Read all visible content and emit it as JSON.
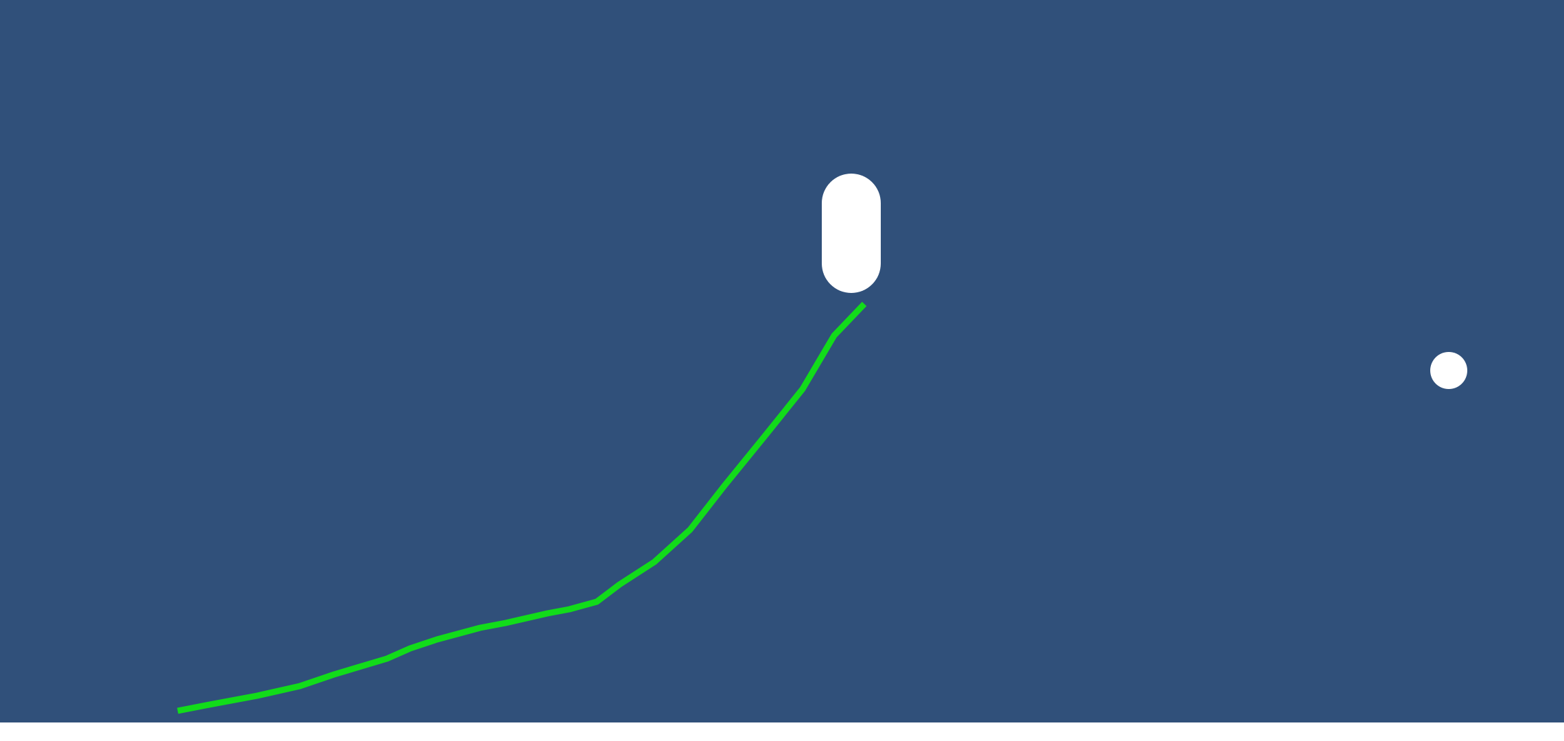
{
  "colors": {
    "background": "#30507a",
    "trail": "#12dc1a",
    "player": "#ffffff",
    "target": "#ffffff",
    "bottom_strip": "#ffffff"
  },
  "objects": {
    "player": {
      "shape": "capsule",
      "icon": "capsule-icon"
    },
    "trail": {
      "shape": "polyline"
    },
    "target": {
      "shape": "circle",
      "icon": "ball-icon"
    }
  }
}
